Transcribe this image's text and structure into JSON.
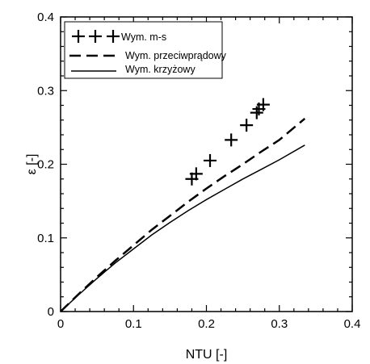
{
  "chart_data": {
    "type": "line",
    "xlabel": "NTU [-]",
    "ylabel": "ε [-]",
    "xlim": [
      0,
      0.4
    ],
    "ylim": [
      0,
      0.4
    ],
    "x_ticks": [
      0,
      0.1,
      0.2,
      0.3,
      0.4
    ],
    "y_ticks": [
      0,
      0.1,
      0.2,
      0.3,
      0.4
    ],
    "x_tick_labels": [
      "0",
      "0.1",
      "0.2",
      "0.3",
      "0.4"
    ],
    "y_tick_labels": [
      "0",
      "0.1",
      "0.2",
      "0.3",
      "0.4"
    ],
    "grid": false,
    "legend_position": "top-left",
    "series": [
      {
        "name": "Wym. m-s",
        "style": "markers",
        "marker": "plus",
        "color": "#000000",
        "points": [
          [
            0.18,
            0.18
          ],
          [
            0.186,
            0.187
          ],
          [
            0.205,
            0.205
          ],
          [
            0.234,
            0.233
          ],
          [
            0.255,
            0.253
          ],
          [
            0.269,
            0.27
          ],
          [
            0.272,
            0.275
          ],
          [
            0.278,
            0.281
          ]
        ]
      },
      {
        "name": "Wym. przeciwprądowy",
        "style": "dashed",
        "color": "#000000",
        "points": [
          [
            0,
            0
          ],
          [
            0.025,
            0.024
          ],
          [
            0.05,
            0.047
          ],
          [
            0.075,
            0.069
          ],
          [
            0.1,
            0.09
          ],
          [
            0.125,
            0.111
          ],
          [
            0.15,
            0.13
          ],
          [
            0.175,
            0.149
          ],
          [
            0.2,
            0.167
          ],
          [
            0.225,
            0.184
          ],
          [
            0.25,
            0.2
          ],
          [
            0.275,
            0.217
          ],
          [
            0.3,
            0.233
          ],
          [
            0.335,
            0.262
          ]
        ]
      },
      {
        "name": "Wym. krzyżowy",
        "style": "solid",
        "color": "#000000",
        "points": [
          [
            0,
            0
          ],
          [
            0.025,
            0.023
          ],
          [
            0.05,
            0.045
          ],
          [
            0.075,
            0.066
          ],
          [
            0.1,
            0.085
          ],
          [
            0.125,
            0.104
          ],
          [
            0.15,
            0.121
          ],
          [
            0.175,
            0.137
          ],
          [
            0.2,
            0.152
          ],
          [
            0.225,
            0.166
          ],
          [
            0.25,
            0.18
          ],
          [
            0.275,
            0.193
          ],
          [
            0.3,
            0.206
          ],
          [
            0.335,
            0.226
          ]
        ]
      }
    ]
  }
}
